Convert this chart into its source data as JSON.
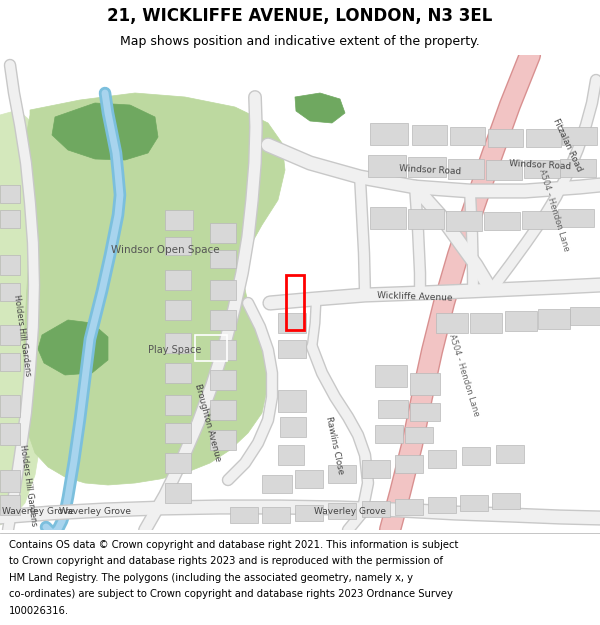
{
  "title": "21, WICKLIFFE AVENUE, LONDON, N3 3EL",
  "subtitle": "Map shows position and indicative extent of the property.",
  "footer_lines": [
    "Contains OS data © Crown copyright and database right 2021. This information is subject",
    "to Crown copyright and database rights 2023 and is reproduced with the permission of",
    "HM Land Registry. The polygons (including the associated geometry, namely x, y",
    "co-ordinates) are subject to Crown copyright and database rights 2023 Ordnance Survey",
    "100026316."
  ],
  "map_bg": "#ffffff",
  "green_light": "#d4e8bc",
  "green_main": "#bdd9a0",
  "green_dark": "#6fa860",
  "water_color": "#7bbfdd",
  "road_fill": "#f0f0f0",
  "road_border": "#c8c8c8",
  "building_color": "#d8d8d8",
  "building_border": "#b8b8b8",
  "a504_fill": "#f2c4c4",
  "a504_border": "#d89090",
  "property_border": "#ff0000",
  "title_fontsize": 12,
  "subtitle_fontsize": 9,
  "footer_fontsize": 7.2,
  "label_fontsize": 6.5,
  "label_color": "#444444"
}
